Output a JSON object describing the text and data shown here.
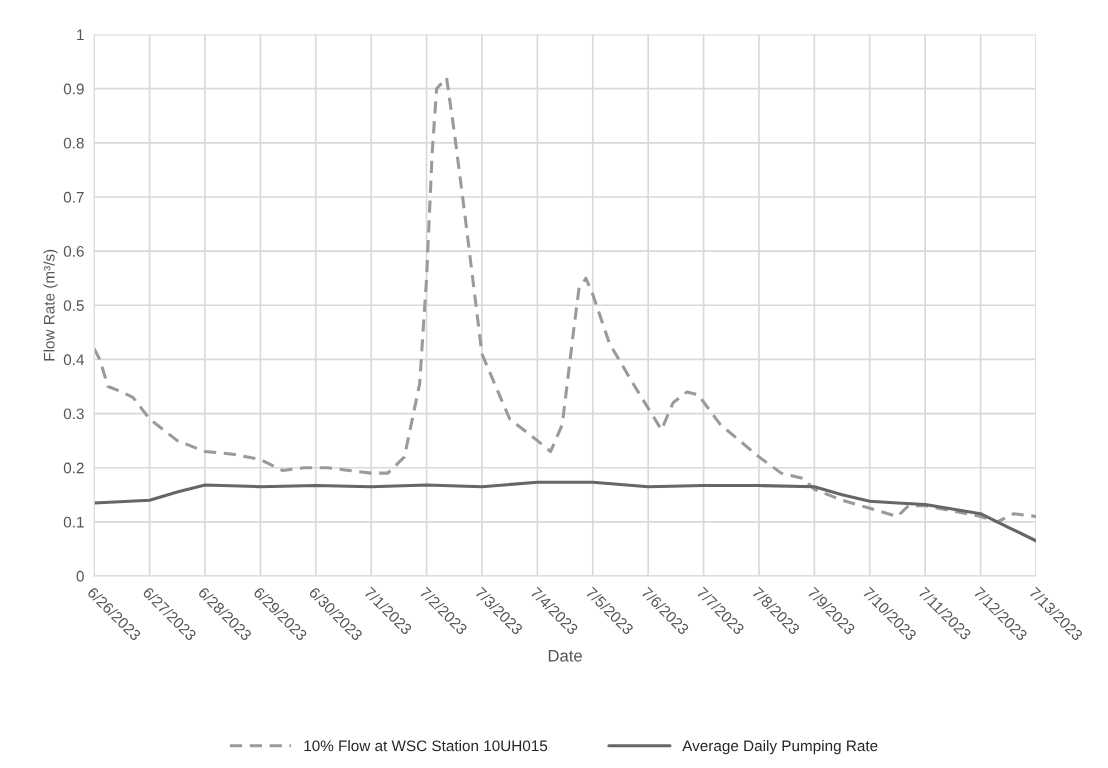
{
  "chart_data": {
    "type": "line",
    "xlabel": "Date",
    "ylabel": "Flow Rate (m³/s)",
    "xlim": [
      "2023-06-26",
      "2023-07-13"
    ],
    "xticks": [
      {
        "value": "2023-06-26",
        "label": "6/26/2023"
      },
      {
        "value": "2023-06-27",
        "label": "6/27/2023"
      },
      {
        "value": "2023-06-28",
        "label": "6/28/2023"
      },
      {
        "value": "2023-06-29",
        "label": "6/29/2023"
      },
      {
        "value": "2023-06-30",
        "label": "6/30/2023"
      },
      {
        "value": "2023-07-01",
        "label": "7/1/2023"
      },
      {
        "value": "2023-07-02",
        "label": "7/2/2023"
      },
      {
        "value": "2023-07-03",
        "label": "7/3/2023"
      },
      {
        "value": "2023-07-04",
        "label": "7/4/2023"
      },
      {
        "value": "2023-07-05",
        "label": "7/5/2023"
      },
      {
        "value": "2023-07-06",
        "label": "7/6/2023"
      },
      {
        "value": "2023-07-07",
        "label": "7/7/2023"
      },
      {
        "value": "2023-07-08",
        "label": "7/8/2023"
      },
      {
        "value": "2023-07-09",
        "label": "7/9/2023"
      },
      {
        "value": "2023-07-10",
        "label": "7/10/2023"
      },
      {
        "value": "2023-07-11",
        "label": "7/11/2023"
      },
      {
        "value": "2023-07-12",
        "label": "7/12/2023"
      },
      {
        "value": "2023-07-13",
        "label": "7/13/2023"
      }
    ],
    "ylim": [
      0,
      1
    ],
    "yticks": [
      0,
      0.1,
      0.2,
      0.3,
      0.4,
      0.5,
      0.6,
      0.7,
      0.8,
      0.9,
      1
    ],
    "grid": true,
    "legend": "bottom",
    "series": [
      {
        "name": "10% Flow at WSC Station 10UH015",
        "color": "#9a9a9a",
        "line_style": "dashed",
        "x": [
          "2023-06-26T00:00",
          "2023-06-26T02:24",
          "2023-06-26T06:00",
          "2023-06-26T12:00",
          "2023-06-26T16:48",
          "2023-06-27T00:00",
          "2023-06-27T12:00",
          "2023-06-28T00:00",
          "2023-06-28T12:00",
          "2023-06-29T00:00",
          "2023-06-29T09:36",
          "2023-06-29T19:12",
          "2023-06-30T04:48",
          "2023-06-30T14:24",
          "2023-07-01T00:00",
          "2023-07-01T07:12",
          "2023-07-01T14:24",
          "2023-07-01T21:00",
          "2023-07-02T00:00",
          "2023-07-02T02:24",
          "2023-07-02T04:20",
          "2023-07-02T08:40",
          "2023-07-02T12:00",
          "2023-07-02T16:48",
          "2023-07-03T00:00",
          "2023-07-03T12:00",
          "2023-07-04T00:00",
          "2023-07-04T05:45",
          "2023-07-04T10:48",
          "2023-07-04T15:36",
          "2023-07-04T18:00",
          "2023-07-04T21:00",
          "2023-07-05T00:00",
          "2023-07-05T07:12",
          "2023-07-05T16:48",
          "2023-07-06T05:45",
          "2023-07-06T10:48",
          "2023-07-06T16:48",
          "2023-07-06T21:36",
          "2023-07-07T07:12",
          "2023-07-08T00:00",
          "2023-07-08T09:36",
          "2023-07-08T19:12",
          "2023-07-09T00:00",
          "2023-07-09T12:00",
          "2023-07-10T00:00",
          "2023-07-10T12:00",
          "2023-07-10T16:48",
          "2023-07-11T00:00",
          "2023-07-11T12:00",
          "2023-07-12T00:00",
          "2023-07-12T07:12",
          "2023-07-12T14:24",
          "2023-07-13T00:00"
        ],
        "values": [
          0.42,
          0.4,
          0.35,
          0.34,
          0.33,
          0.29,
          0.25,
          0.23,
          0.225,
          0.215,
          0.195,
          0.2,
          0.2,
          0.195,
          0.19,
          0.19,
          0.22,
          0.355,
          0.55,
          0.78,
          0.9,
          0.92,
          0.82,
          0.66,
          0.41,
          0.29,
          0.25,
          0.23,
          0.28,
          0.45,
          0.53,
          0.55,
          0.52,
          0.43,
          0.36,
          0.27,
          0.32,
          0.34,
          0.335,
          0.28,
          0.22,
          0.19,
          0.18,
          0.16,
          0.14,
          0.125,
          0.11,
          0.13,
          0.13,
          0.12,
          0.11,
          0.1,
          0.115,
          0.11
        ]
      },
      {
        "name": "Average Daily Pumping Rate",
        "color": "#666666",
        "line_style": "solid",
        "x": [
          "2023-06-26T00:00",
          "2023-06-27T00:00",
          "2023-06-27T12:00",
          "2023-06-28T00:00",
          "2023-06-29T00:00",
          "2023-06-30T00:00",
          "2023-07-01T00:00",
          "2023-07-02T00:00",
          "2023-07-03T00:00",
          "2023-07-04T00:00",
          "2023-07-05T00:00",
          "2023-07-06T00:00",
          "2023-07-07T00:00",
          "2023-07-08T00:00",
          "2023-07-09T00:00",
          "2023-07-09T12:00",
          "2023-07-10T00:00",
          "2023-07-10T12:00",
          "2023-07-11T00:00",
          "2023-07-12T00:00",
          "2023-07-12T12:00",
          "2023-07-13T00:00"
        ],
        "values": [
          0.135,
          0.14,
          0.155,
          0.168,
          0.165,
          0.167,
          0.165,
          0.168,
          0.165,
          0.173,
          0.173,
          0.165,
          0.167,
          0.167,
          0.165,
          0.15,
          0.138,
          0.135,
          0.132,
          0.115,
          0.09,
          0.065
        ]
      }
    ]
  }
}
